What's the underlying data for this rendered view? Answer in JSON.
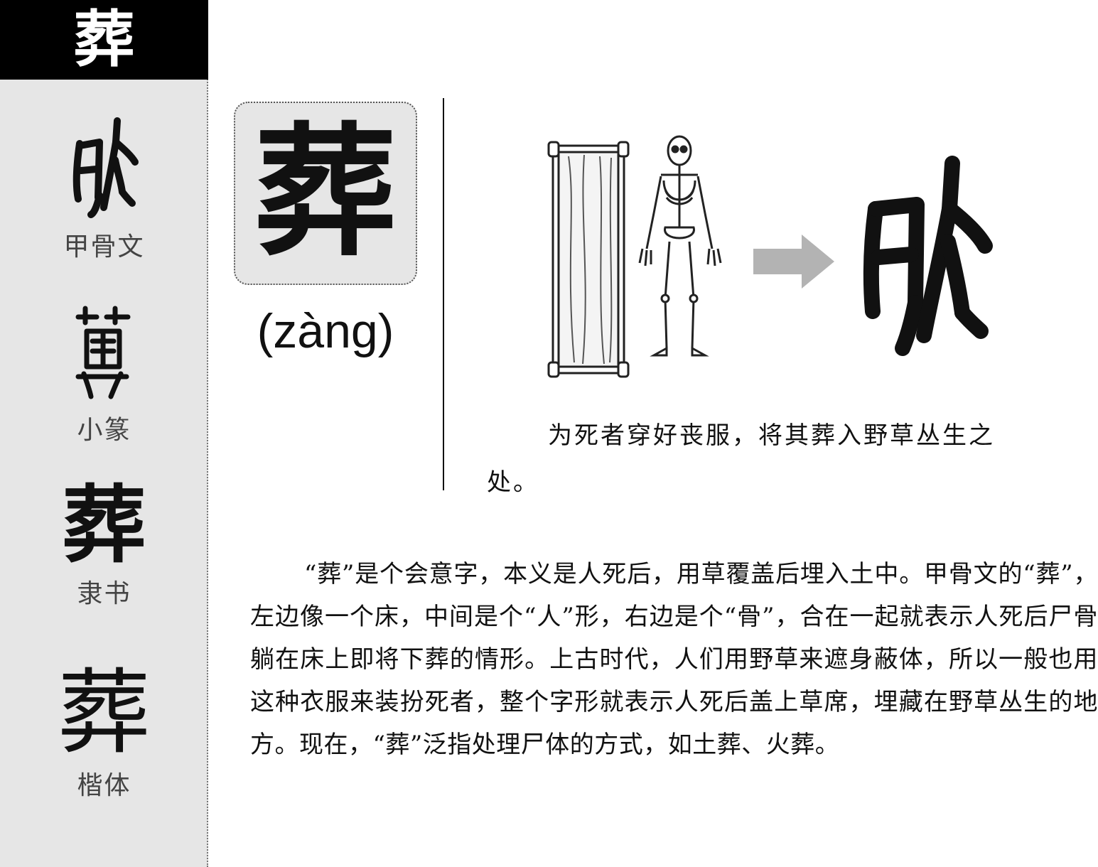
{
  "header": {
    "title_char": "葬"
  },
  "sidebar": {
    "oracle": {
      "glyph": "",
      "label": "甲骨文"
    },
    "seal": {
      "glyph": "",
      "label": "小篆"
    },
    "clerical": {
      "glyph": "葬",
      "label": "隶书"
    },
    "regular": {
      "glyph": "葬",
      "label": "楷体"
    }
  },
  "main": {
    "character": "葬",
    "pinyin": "(zàng)",
    "illustration": {
      "items": [
        "bed-icon",
        "skeleton-icon",
        "arrow-right-icon",
        "oracle-glyph-icon"
      ]
    },
    "caption": "为死者穿好丧服，将其葬入野草丛生之处。",
    "body": "“葬”是个会意字，本义是人死后，用草覆盖后埋入土中。甲骨文的“葬”，左边像一个床，中间是个“人”形，右边是个“骨”，合在一起就表示人死后尸骨躺在床上即将下葬的情形。上古时代，人们用野草来遮身蔽体，所以一般也用这种衣服来装扮死者，整个字形就表示人死后盖上草席，埋藏在野草丛生的地方。现在，“葬”泛指处理尸体的方式，如土葬、火葬。"
  },
  "colors": {
    "title_bg": "#000000",
    "sidebar_bg": "#e6e6e6",
    "card_bg": "#e6e6e6",
    "arrow": "#b3b3b3"
  }
}
